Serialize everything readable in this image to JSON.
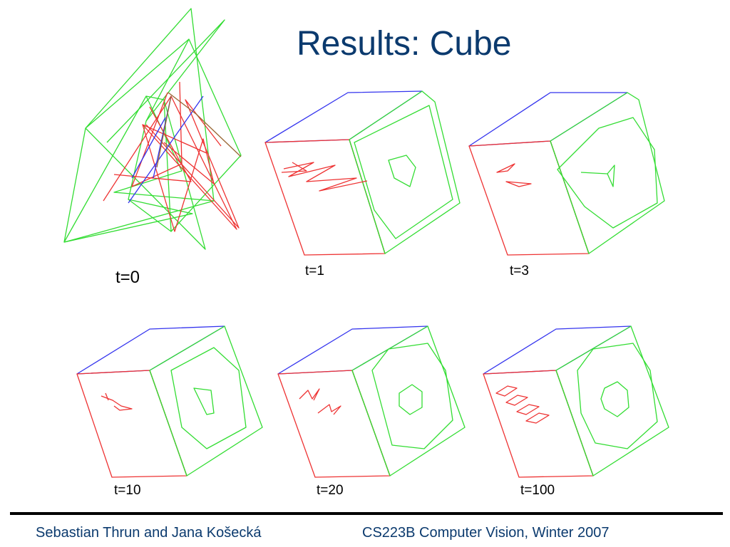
{
  "title": "Results: Cube",
  "colors": {
    "title": "#0b3a6e",
    "green": "#33dd33",
    "red": "#ee3333",
    "blue": "#3333ee",
    "brown": "#996633"
  },
  "frames": [
    {
      "label": "t=0"
    },
    {
      "label": "t=1"
    },
    {
      "label": "t=3"
    },
    {
      "label": "t=10"
    },
    {
      "label": "t=20"
    },
    {
      "label": "t=100"
    }
  ],
  "footer": {
    "authors": "Sebastian Thrun and Jana Košecká",
    "course": "CS223B Computer Vision, Winter 2007"
  }
}
